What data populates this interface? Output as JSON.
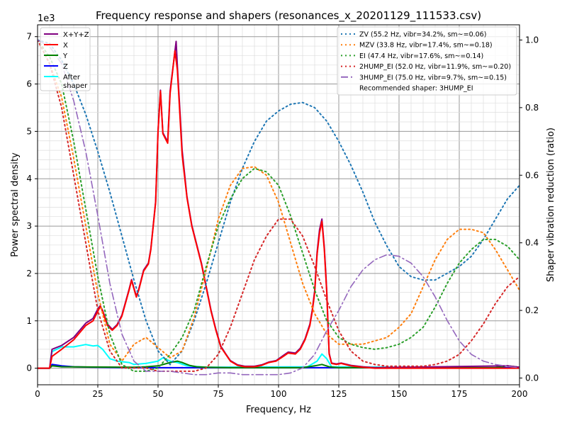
{
  "chart_data": {
    "type": "line",
    "title": "Frequency response and shapers (resonances_x_20201129_111533.csv)",
    "xlabel": "Frequency, Hz",
    "ylabel": "Power spectral density",
    "ylabel_right": "Shaper vibration reduction (ratio)",
    "y_offset_label": "1e3",
    "xlim": [
      0,
      200
    ],
    "ylim": [
      -0.35,
      7.25
    ],
    "ylim_right": [
      -0.02,
      1.045
    ],
    "x_ticks": [
      "0",
      "25",
      "50",
      "75",
      "100",
      "125",
      "150",
      "175",
      "200"
    ],
    "y_ticks": [
      "0",
      "1",
      "2",
      "3",
      "4",
      "5",
      "6",
      "7"
    ],
    "y_ticks_right": [
      "0.0",
      "0.2",
      "0.4",
      "0.6",
      "0.8",
      "1.0"
    ],
    "grid": "major and minor",
    "legend_left": {
      "placement": "top-left",
      "entries": [
        "X+Y+Z",
        "X",
        "Y",
        "Z",
        "After\nshaper"
      ]
    },
    "legend_right": {
      "placement": "top-right",
      "note": "Recommended shaper: 3HUMP_EI"
    },
    "psd_series": [
      {
        "name": "X+Y+Z",
        "color": "#800080",
        "x": [
          0,
          5,
          6,
          10,
          15,
          20,
          23,
          25,
          26,
          27,
          29,
          31,
          33,
          35,
          38,
          39,
          41,
          42,
          44,
          46,
          47,
          49,
          50,
          51,
          52,
          54,
          55,
          57.5,
          58,
          60,
          62,
          64,
          66,
          68,
          70,
          72,
          74,
          76,
          78,
          80,
          83,
          86,
          90,
          93,
          96,
          99,
          102,
          104,
          107,
          109,
          111,
          113,
          114,
          115,
          116,
          117,
          118,
          119,
          120,
          121,
          122,
          124,
          126,
          130,
          135,
          140,
          195,
          200
        ],
        "y": [
          0,
          0,
          0.4,
          0.48,
          0.65,
          0.95,
          1.05,
          1.25,
          1.32,
          1.22,
          0.93,
          0.82,
          0.92,
          1.12,
          1.67,
          1.87,
          1.52,
          1.67,
          2.07,
          2.22,
          2.52,
          3.52,
          5.02,
          5.87,
          4.97,
          4.78,
          5.85,
          6.9,
          6.4,
          4.6,
          3.62,
          3.02,
          2.62,
          2.22,
          1.72,
          1.22,
          0.82,
          0.47,
          0.31,
          0.16,
          0.07,
          0.04,
          0.04,
          0.07,
          0.13,
          0.16,
          0.27,
          0.34,
          0.32,
          0.42,
          0.62,
          0.93,
          1.23,
          1.64,
          2.45,
          2.92,
          3.15,
          2.55,
          1.64,
          0.32,
          0.11,
          0.09,
          0.11,
          0.06,
          0.03,
          0.01,
          0.05,
          0.02
        ]
      },
      {
        "name": "X",
        "color": "#ff0000",
        "x": [
          0,
          5,
          6,
          10,
          15,
          20,
          23,
          25,
          26,
          27,
          29,
          31,
          33,
          35,
          38,
          39,
          41,
          42,
          44,
          46,
          47,
          49,
          50,
          51,
          52,
          54,
          55,
          57,
          58,
          60,
          62,
          64,
          66,
          68,
          70,
          72,
          74,
          76,
          78,
          80,
          83,
          86,
          90,
          93,
          96,
          99,
          102,
          104,
          107,
          109,
          111,
          113,
          114,
          115,
          116,
          117,
          118,
          119,
          120,
          121,
          122,
          124,
          126,
          130,
          135,
          140,
          200
        ],
        "y": [
          0,
          0,
          0.25,
          0.4,
          0.6,
          0.9,
          1.0,
          1.2,
          1.3,
          1.2,
          0.9,
          0.8,
          0.9,
          1.1,
          1.65,
          1.85,
          1.5,
          1.65,
          2.05,
          2.2,
          2.5,
          3.5,
          5.0,
          5.85,
          4.95,
          4.75,
          5.8,
          6.7,
          6.3,
          4.5,
          3.6,
          3.0,
          2.6,
          2.2,
          1.7,
          1.2,
          0.8,
          0.45,
          0.3,
          0.15,
          0.06,
          0.03,
          0.03,
          0.06,
          0.12,
          0.15,
          0.25,
          0.32,
          0.3,
          0.4,
          0.6,
          0.9,
          1.2,
          1.6,
          2.4,
          2.85,
          3.1,
          2.5,
          1.6,
          0.3,
          0.1,
          0.08,
          0.1,
          0.05,
          0.02,
          0,
          0
        ]
      },
      {
        "name": "Y",
        "color": "#008000",
        "x": [
          0,
          5,
          6,
          10,
          40,
          45,
          50,
          55,
          58,
          60,
          63,
          66,
          70,
          80,
          110,
          115,
          118,
          121,
          125,
          190,
          195,
          200
        ],
        "y": [
          0,
          0,
          0.05,
          0.03,
          0.02,
          0.03,
          0.05,
          0.12,
          0.15,
          0.12,
          0.06,
          0.03,
          0.02,
          0.01,
          0.01,
          0.05,
          0.08,
          0.03,
          0.01,
          0.01,
          0.05,
          0.02
        ]
      },
      {
        "name": "Z",
        "color": "#0000ff",
        "x": [
          0,
          5,
          6,
          10,
          15,
          25,
          40,
          60,
          100,
          200
        ],
        "y": [
          0,
          0,
          0.08,
          0.05,
          0.03,
          0.02,
          0.01,
          0.01,
          0.01,
          0.01
        ]
      },
      {
        "name": "After\nshaper",
        "color": "#00ffff",
        "x": [
          0,
          5,
          6,
          10,
          15,
          20,
          23,
          25,
          27,
          30,
          33,
          38,
          40,
          45,
          50,
          52,
          55,
          58,
          62,
          70,
          112,
          116,
          118,
          120,
          122,
          200
        ],
        "y": [
          0,
          0,
          0.35,
          0.45,
          0.45,
          0.5,
          0.47,
          0.48,
          0.4,
          0.2,
          0.15,
          0.12,
          0.08,
          0.1,
          0.15,
          0.22,
          0.15,
          0.12,
          0.05,
          0.02,
          0.03,
          0.15,
          0.3,
          0.2,
          0.03,
          0
        ]
      }
    ],
    "shaper_series": [
      {
        "name": "ZV (55.2 Hz, vibr=34.2%, sm~=0.06)",
        "color": "#1f77b4",
        "dash": "dotted",
        "y": [
          1.0,
          0.99,
          0.94,
          0.87,
          0.78,
          0.67,
          0.55,
          0.42,
          0.29,
          0.17,
          0.08,
          0.04,
          0.08,
          0.17,
          0.28,
          0.4,
          0.52,
          0.62,
          0.7,
          0.76,
          0.79,
          0.81,
          0.815,
          0.8,
          0.76,
          0.7,
          0.63,
          0.55,
          0.46,
          0.39,
          0.33,
          0.3,
          0.29,
          0.29,
          0.31,
          0.33,
          0.36,
          0.41,
          0.47,
          0.53,
          0.57
        ]
      },
      {
        "name": "MZV (33.8 Hz, vibr=17.4%, sm~=0.18)",
        "color": "#ff7f0e",
        "dash": "dotted",
        "y": [
          1.0,
          0.93,
          0.83,
          0.65,
          0.45,
          0.25,
          0.1,
          0.05,
          0.1,
          0.12,
          0.09,
          0.06,
          0.08,
          0.18,
          0.32,
          0.47,
          0.57,
          0.62,
          0.625,
          0.6,
          0.52,
          0.4,
          0.28,
          0.19,
          0.13,
          0.1,
          0.1,
          0.1,
          0.11,
          0.12,
          0.15,
          0.19,
          0.27,
          0.35,
          0.41,
          0.44,
          0.44,
          0.43,
          0.38,
          0.32,
          0.26
        ]
      },
      {
        "name": "EI (47.4 Hz, vibr=17.6%, sm~=0.14)",
        "color": "#2ca02c",
        "dash": "dotted",
        "y": [
          1.0,
          0.95,
          0.87,
          0.7,
          0.5,
          0.3,
          0.13,
          0.04,
          0.02,
          0.02,
          0.03,
          0.07,
          0.12,
          0.2,
          0.33,
          0.45,
          0.53,
          0.59,
          0.62,
          0.61,
          0.57,
          0.48,
          0.37,
          0.26,
          0.17,
          0.12,
          0.1,
          0.09,
          0.085,
          0.09,
          0.1,
          0.12,
          0.15,
          0.21,
          0.28,
          0.34,
          0.38,
          0.41,
          0.41,
          0.39,
          0.35
        ]
      },
      {
        "name": "2HUMP_EI (52.0 Hz, vibr=11.9%, sm~=0.20)",
        "color": "#d62728",
        "dash": "dotted",
        "y": [
          1.0,
          0.93,
          0.8,
          0.6,
          0.4,
          0.2,
          0.08,
          0.03,
          0.03,
          0.03,
          0.02,
          0.02,
          0.02,
          0.02,
          0.03,
          0.07,
          0.15,
          0.25,
          0.35,
          0.42,
          0.47,
          0.47,
          0.42,
          0.33,
          0.23,
          0.14,
          0.08,
          0.05,
          0.04,
          0.035,
          0.035,
          0.035,
          0.035,
          0.04,
          0.05,
          0.07,
          0.11,
          0.16,
          0.22,
          0.27,
          0.3
        ]
      },
      {
        "name": "3HUMP_EI (75.0 Hz, vibr=9.7%, sm~=0.15)",
        "color": "#9467bd",
        "dash": "dashdot",
        "y": [
          1.0,
          0.98,
          0.93,
          0.82,
          0.67,
          0.48,
          0.28,
          0.13,
          0.05,
          0.02,
          0.02,
          0.02,
          0.015,
          0.01,
          0.01,
          0.015,
          0.015,
          0.01,
          0.01,
          0.01,
          0.01,
          0.015,
          0.03,
          0.07,
          0.14,
          0.2,
          0.27,
          0.32,
          0.35,
          0.365,
          0.36,
          0.34,
          0.3,
          0.24,
          0.17,
          0.11,
          0.07,
          0.05,
          0.04,
          0.035,
          0.03
        ]
      }
    ],
    "shaper_x_step": 5
  }
}
